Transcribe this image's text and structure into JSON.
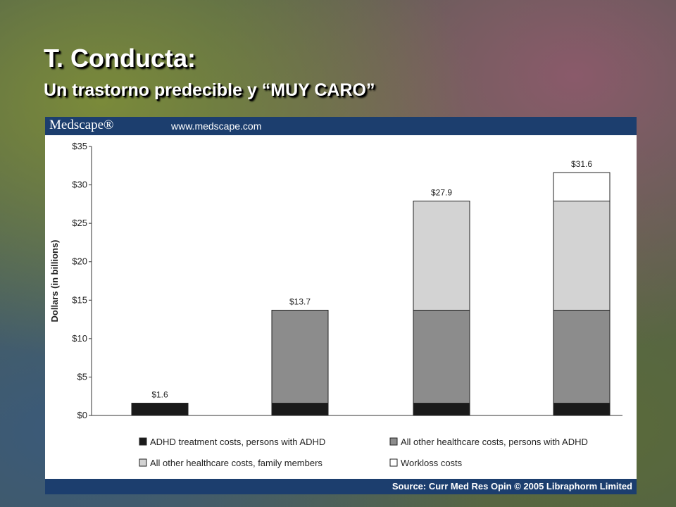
{
  "slide": {
    "title": "T. Conducta:",
    "subtitle": "Un trastorno predecible y “MUY CARO”"
  },
  "banner": {
    "logo": "Medscape®",
    "url": "www.medscape.com"
  },
  "footer": {
    "source": "Source: Curr Med Res Opin © 2005 Libraphorm Limited"
  },
  "chart_data": {
    "type": "bar",
    "stacked": true,
    "ylabel": "Dollars (in billions)",
    "ylim": [
      0,
      35
    ],
    "yticks": [
      {
        "value": 0,
        "label": "$0"
      },
      {
        "value": 5,
        "label": "$5"
      },
      {
        "value": 10,
        "label": "$10"
      },
      {
        "value": 15,
        "label": "$15"
      },
      {
        "value": 20,
        "label": "$20"
      },
      {
        "value": 25,
        "label": "$25"
      },
      {
        "value": 30,
        "label": "$30"
      },
      {
        "value": 35,
        "label": "$35"
      }
    ],
    "categories": [
      "",
      "",
      "",
      ""
    ],
    "totals_labels": [
      "$1.6",
      "$13.7",
      "$27.9",
      "$31.6"
    ],
    "series": [
      {
        "name": "ADHD treatment costs, persons with ADHD",
        "color": "#1a1a1a",
        "values": [
          1.6,
          1.6,
          1.6,
          1.6
        ]
      },
      {
        "name": "All other healthcare costs, persons with ADHD",
        "color": "#8c8c8c",
        "values": [
          0,
          12.1,
          12.1,
          12.1
        ]
      },
      {
        "name": "All other healthcare costs, family members",
        "color": "#d3d3d3",
        "values": [
          0,
          0,
          14.2,
          14.2
        ]
      },
      {
        "name": "Workloss costs",
        "color": "#ffffff",
        "values": [
          0,
          0,
          0,
          3.7
        ]
      }
    ],
    "legend_position": "bottom"
  }
}
